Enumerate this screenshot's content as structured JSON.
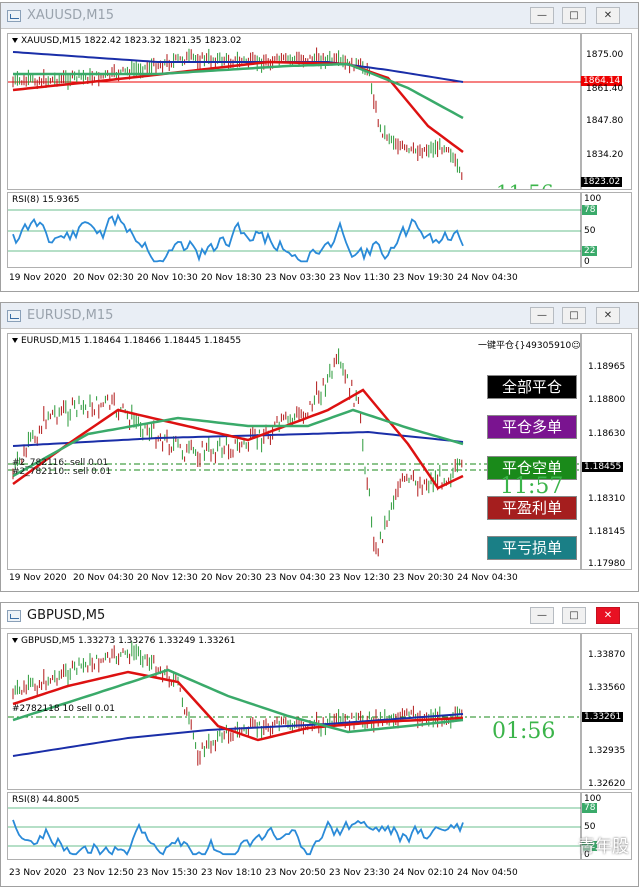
{
  "windows": [
    {
      "title": "XAUUSD,M15",
      "info": "XAUUSD,M15  1822.42 1823.32 1821.35 1823.02",
      "price_labels": [
        "1875.00",
        "1861.40",
        "1847.80",
        "1834.20",
        "1823.02"
      ],
      "red_tag": "1864.14",
      "rsi_title": "RSI(8) 15.9365",
      "rsi_levels": [
        "100",
        "78",
        "50",
        "22",
        "0"
      ],
      "timer": "11:56",
      "dates": [
        "19 Nov 2020",
        "20 Nov 02:30",
        "20 Nov 10:30",
        "20 Nov 18:30",
        "23 Nov 03:30",
        "23 Nov 11:30",
        "23 Nov 19:30",
        "24 Nov 04:30"
      ]
    },
    {
      "title": "EURUSD,M15",
      "info": "EURUSD,M15  1.18464 1.18466 1.18445 1.18455",
      "price_labels": [
        "1.18965",
        "1.18800",
        "1.18630",
        "1.18455",
        "1.18310",
        "1.18145",
        "1.17980"
      ],
      "order_lines": [
        "#2_782116: sell 0.01",
        "#2_782110:: sell 0.01"
      ],
      "top_right": "一键平仓{}49305910☺",
      "buttons": [
        "全部平仓",
        "平仓多单",
        "平仓空单",
        "平盈利单",
        "平亏损单"
      ],
      "timer": "11:57",
      "dates": [
        "19 Nov 2020",
        "20 Nov 04:30",
        "20 Nov 12:30",
        "20 Nov 20:30",
        "23 Nov 04:30",
        "23 Nov 12:30",
        "23 Nov 20:30",
        "24 Nov 04:30"
      ]
    },
    {
      "title": "GBPUSD,M5",
      "info": "GBPUSD,M5  1.33273 1.33276 1.33249 1.33261",
      "price_labels": [
        "1.33870",
        "1.33560",
        "1.33261",
        "1.32935",
        "1.32620"
      ],
      "order_line": "#2782118 10 sell 0.01",
      "rsi_title": "RSI(8) 44.8005",
      "rsi_levels": [
        "100",
        "78",
        "50",
        "22",
        "0"
      ],
      "timer": "01:56",
      "dates": [
        "23 Nov 2020",
        "23 Nov 12:50",
        "23 Nov 15:30",
        "23 Nov 18:10",
        "23 Nov 20:50",
        "23 Nov 23:30",
        "24 Nov 02:10",
        "24 Nov 04:50"
      ]
    }
  ],
  "watermark": "青年股",
  "colors": {
    "ma_red": "#dd1111",
    "ma_green": "#3aaa6a",
    "ma_blue": "#1a2ea8",
    "rsi": "#2a8ad8",
    "btn_close_all": "#000000",
    "btn_close_buy": "#7a1490",
    "btn_close_sell": "#1a8a1a",
    "btn_close_profit": "#a51e1e",
    "btn_close_loss": "#1a7f86"
  }
}
